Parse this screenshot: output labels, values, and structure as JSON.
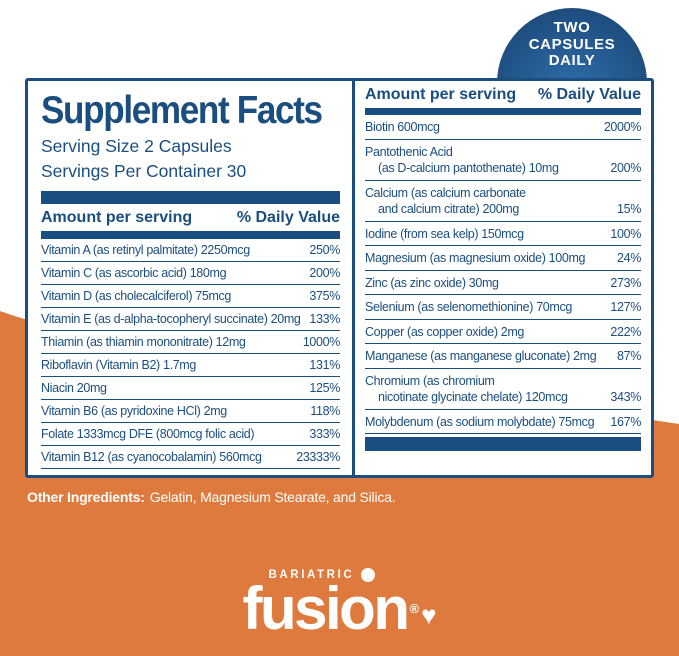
{
  "badge": {
    "lines": [
      "TWO",
      "CAPSULES",
      "DAILY"
    ]
  },
  "panel": {
    "title": "Supplement Facts",
    "serving_size": "Serving Size 2 Capsules",
    "servings_per_container": "Servings Per Container 30",
    "columns_header": {
      "amount": "Amount per serving",
      "dv": "% Daily Value"
    },
    "left_rows": [
      {
        "label": "Vitamin A (as retinyl palmitate) 2250mcg",
        "dv": "250%"
      },
      {
        "label": "Vitamin C (as ascorbic acid) 180mg",
        "dv": "200%"
      },
      {
        "label": "Vitamin D (as cholecalciferol) 75mcg",
        "dv": "375%"
      },
      {
        "label": "Vitamin E (as d-alpha-tocopheryl succinate) 20mg",
        "dv": "133%"
      },
      {
        "label": "Thiamin (as thiamin mononitrate) 12mg",
        "dv": "1000%"
      },
      {
        "label": "Riboflavin (Vitamin B2) 1.7mg",
        "dv": "131%"
      },
      {
        "label": "Niacin 20mg",
        "dv": "125%"
      },
      {
        "label": "Vitamin B6 (as pyridoxine HCl) 2mg",
        "dv": "118%"
      },
      {
        "label": "Folate 1333mcg DFE (800mcg folic acid)",
        "dv": "333%"
      },
      {
        "label": "Vitamin B12 (as cyanocobalamin) 560mcg",
        "dv": "23333%"
      }
    ],
    "right_rows": [
      {
        "label": "Biotin 600mcg",
        "dv": "2000%"
      },
      {
        "label": "Pantothenic Acid",
        "label2": "(as D-calcium pantothenate) 10mg",
        "dv": "200%"
      },
      {
        "label": "Calcium (as calcium carbonate",
        "label2": "and calcium citrate) 200mg",
        "dv": "15%"
      },
      {
        "label": "Iodine (from sea kelp) 150mcg",
        "dv": "100%"
      },
      {
        "label": "Magnesium (as magnesium oxide) 100mg",
        "dv": "24%"
      },
      {
        "label": "Zinc (as zinc oxide) 30mg",
        "dv": "273%"
      },
      {
        "label": "Selenium (as selenomethionine) 70mcg",
        "dv": "127%"
      },
      {
        "label": "Copper (as copper oxide) 2mg",
        "dv": "222%"
      },
      {
        "label": "Manganese (as manganese gluconate) 2mg",
        "dv": "87%"
      },
      {
        "label": "Chromium (as chromium",
        "label2": "nicotinate glycinate chelate) 120mcg",
        "dv": "343%"
      },
      {
        "label": "Molybdenum (as sodium molybdate) 75mcg",
        "dv": "167%"
      }
    ]
  },
  "other_ingredients": {
    "label": "Other Ingredients:",
    "text": "Gelatin, Magnesium Stearate, and Silica."
  },
  "logo": {
    "top": "BARIATRIC",
    "wordmark": "fusion",
    "registered": "®",
    "heart": "♥"
  },
  "colors": {
    "orange": "#de7a3d",
    "navy": "#1b4e80",
    "badge_center": "#2f6da9",
    "badge_edge": "#1d4b7c",
    "white": "#ffffff"
  }
}
